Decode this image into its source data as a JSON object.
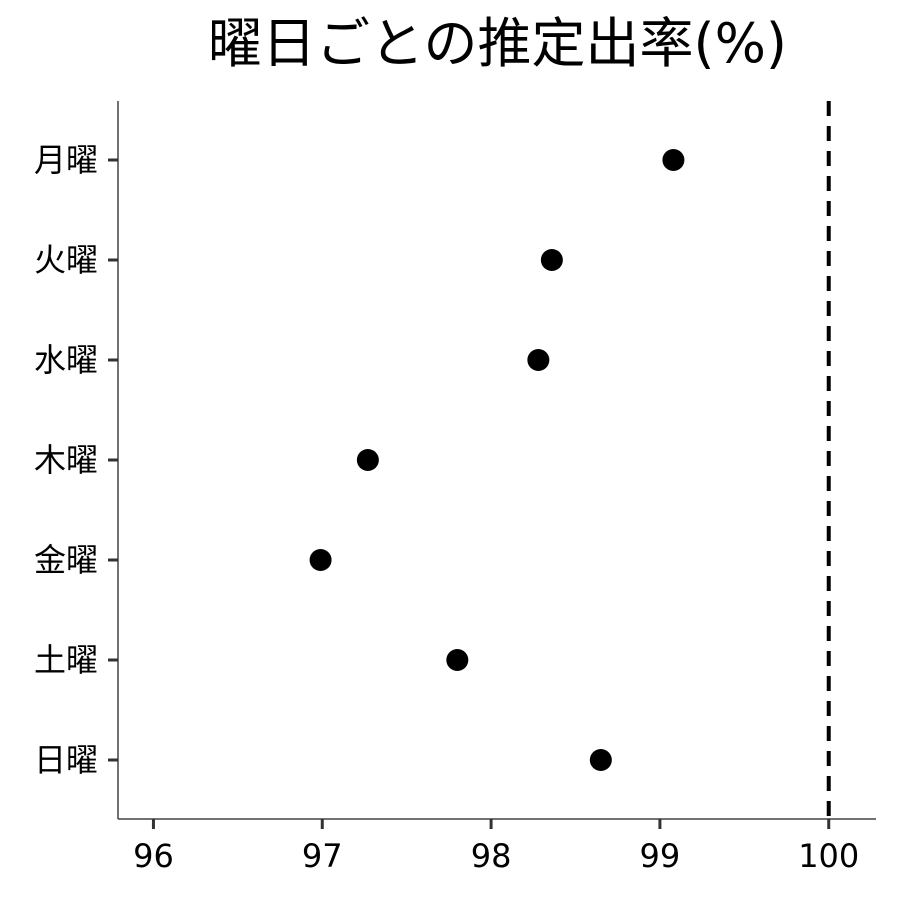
{
  "chart_data": {
    "type": "scatter",
    "title": "曜日ごとの推定出率(%)",
    "xlabel": "",
    "ylabel": "",
    "categories": [
      "月曜",
      "火曜",
      "水曜",
      "木曜",
      "金曜",
      "土曜",
      "日曜"
    ],
    "values": [
      99.08,
      98.36,
      98.28,
      97.27,
      96.99,
      97.8,
      98.65
    ],
    "x_ticks": [
      "96",
      "97",
      "98",
      "99",
      "100"
    ],
    "x_tick_values": [
      96,
      97,
      98,
      99,
      100
    ],
    "xlim": [
      95.79,
      100.28
    ],
    "reference_line": {
      "x": 100,
      "style": "dashed"
    },
    "grid": false,
    "legend": "none",
    "point_color": "#000000"
  }
}
